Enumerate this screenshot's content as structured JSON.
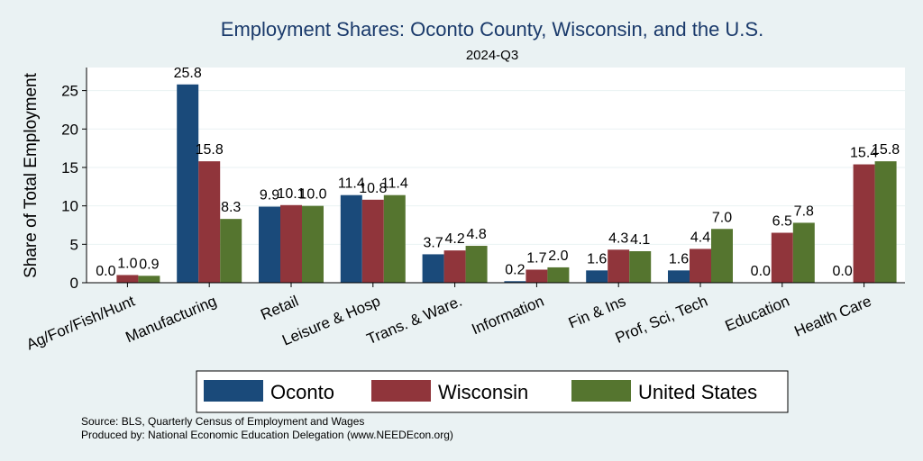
{
  "chart_data": {
    "type": "bar",
    "title": "Employment Shares: Oconto County, Wisconsin, and the U.S.",
    "subtitle": "2024-Q3",
    "ylabel": "Share of Total Employment",
    "xlabel": "",
    "ylim": [
      0,
      28
    ],
    "yticks": [
      0,
      5,
      10,
      15,
      20,
      25
    ],
    "grid": true,
    "legend_position": "bottom",
    "categories": [
      "Ag/For/Fish/Hunt",
      "Manufacturing",
      "Retail",
      "Leisure & Hosp",
      "Trans. & Ware.",
      "Information",
      "Fin & Ins",
      "Prof, Sci, Tech",
      "Education",
      "Health Care"
    ],
    "series": [
      {
        "name": "Oconto",
        "color": "#1a4a7a",
        "values": [
          0.0,
          25.8,
          9.9,
          11.4,
          3.7,
          0.2,
          1.6,
          1.6,
          0.0,
          0.0
        ]
      },
      {
        "name": "Wisconsin",
        "color": "#90353b",
        "values": [
          1.0,
          15.8,
          10.1,
          10.8,
          4.2,
          1.7,
          4.3,
          4.4,
          6.5,
          15.4
        ]
      },
      {
        "name": "United States",
        "color": "#55752f",
        "values": [
          0.9,
          8.3,
          10.0,
          11.4,
          4.8,
          2.0,
          4.1,
          7.0,
          7.8,
          15.8
        ]
      }
    ],
    "value_labels": [
      [
        "0.0",
        "25.8",
        "9.9",
        "11.4",
        "3.7",
        "0.2",
        "1.6",
        "1.6",
        "0.0",
        "0.0"
      ],
      [
        "1.0",
        "15.8",
        "10.1",
        "10.8",
        "4.2",
        "1.7",
        "4.3",
        "4.4",
        "6.5",
        "15.4"
      ],
      [
        "0.9",
        "8.3",
        "10.0",
        "11.4",
        "4.8",
        "2.0",
        "4.1",
        "7.0",
        "7.8",
        "15.8"
      ]
    ]
  },
  "source_lines": [
    "Source: BLS, Quarterly Census of Employment and Wages",
    "Produced by: National Economic Education Delegation (www.NEEDEcon.org)"
  ]
}
